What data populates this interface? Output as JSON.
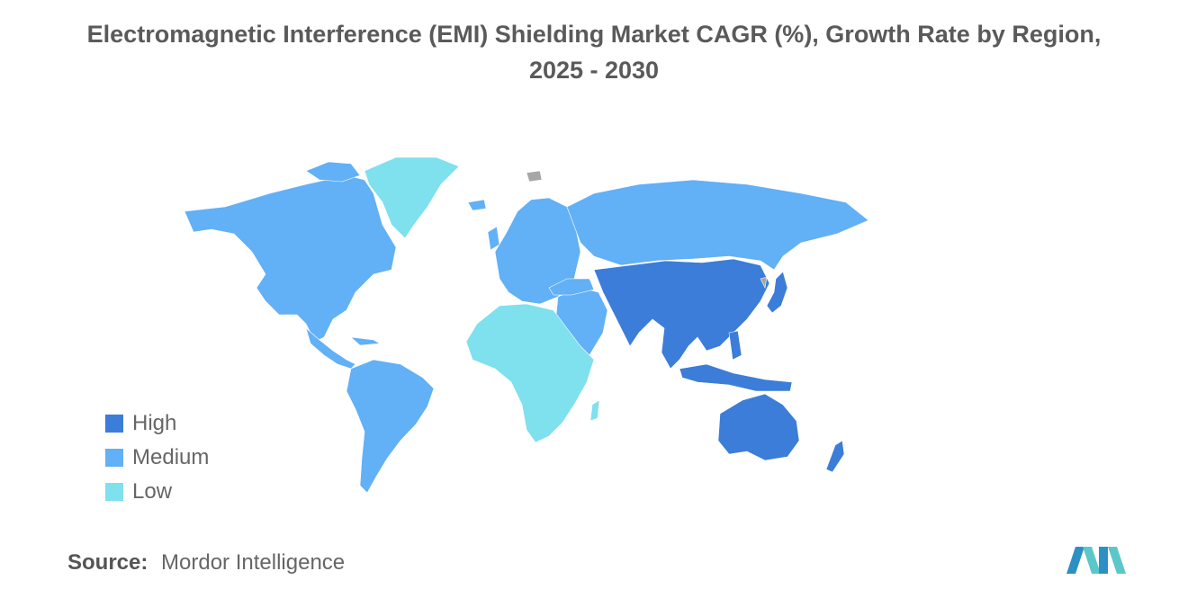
{
  "title": {
    "line1": "Electromagnetic Interference (EMI) Shielding Market CAGR (%), Growth Rate by Region,",
    "line2": "2025 - 2030"
  },
  "colors": {
    "high": "#3b7dd8",
    "medium": "#62b0f6",
    "low": "#7fe0ee",
    "no_data": "#a6a6a6",
    "text": "#666666"
  },
  "legend": [
    {
      "label": "High",
      "level": "high"
    },
    {
      "label": "Medium",
      "level": "medium"
    },
    {
      "label": "Low",
      "level": "low"
    }
  ],
  "regions": [
    {
      "name": "North America",
      "level": "medium"
    },
    {
      "name": "South America",
      "level": "medium"
    },
    {
      "name": "Europe",
      "level": "medium"
    },
    {
      "name": "Middle East",
      "level": "medium"
    },
    {
      "name": "Greenland",
      "level": "low"
    },
    {
      "name": "Africa",
      "level": "low"
    },
    {
      "name": "Asia Pacific",
      "level": "high"
    },
    {
      "name": "Australia and New Zealand",
      "level": "high"
    }
  ],
  "source": {
    "label": "Source:",
    "value": "Mordor Intelligence"
  },
  "logo_icon": "mordor-intelligence-logo-icon"
}
